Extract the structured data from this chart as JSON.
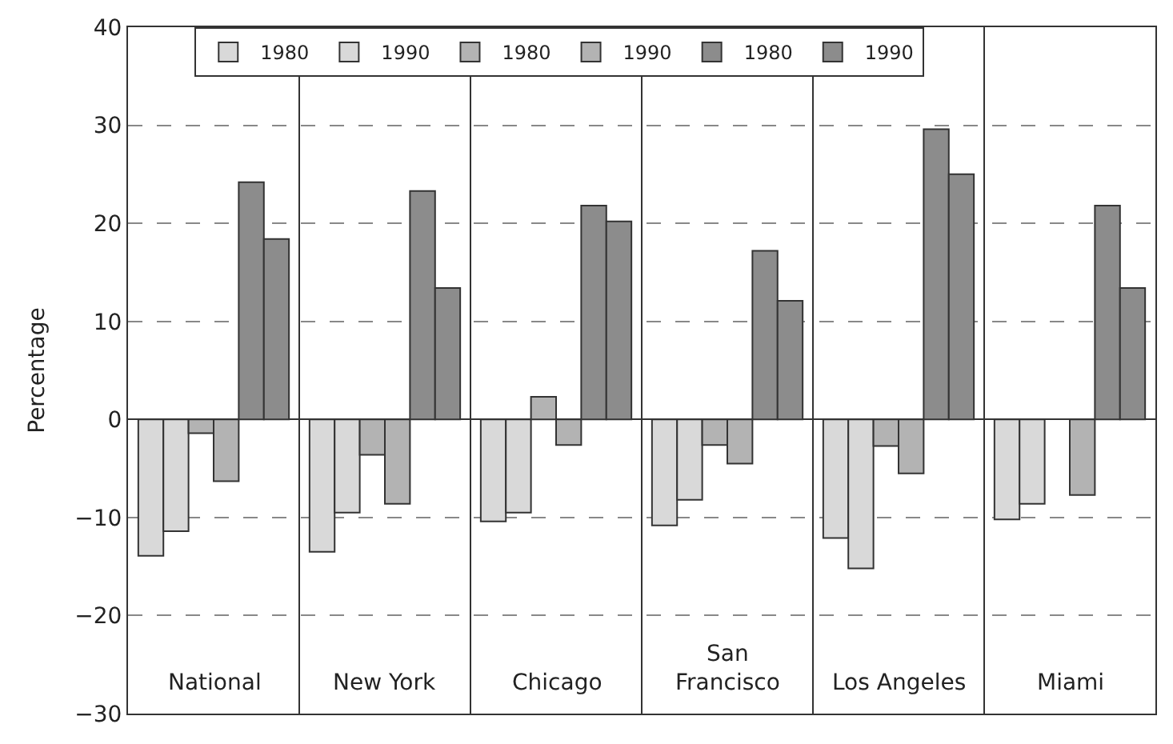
{
  "chart_data": {
    "type": "bar",
    "ylabel": "Percentage",
    "categories": [
      "National",
      "New York",
      "Chicago",
      "San Francisco",
      "Los Angeles",
      "Miami"
    ],
    "series": [
      {
        "name": "1980",
        "color": "#d9d9d9",
        "values": [
          -13.9,
          -13.5,
          -10.4,
          -10.8,
          -12.1,
          -10.2
        ]
      },
      {
        "name": "1990",
        "color": "#d9d9d9",
        "values": [
          -11.4,
          -9.5,
          -9.5,
          -8.2,
          -15.2,
          -8.6
        ]
      },
      {
        "name": "1980",
        "color": "#b3b3b3",
        "values": [
          -1.4,
          -3.6,
          2.3,
          -2.6,
          -2.7,
          null
        ]
      },
      {
        "name": "1990",
        "color": "#b3b3b3",
        "values": [
          -6.3,
          -8.6,
          -2.6,
          -4.5,
          -5.5,
          -7.7
        ]
      },
      {
        "name": "1980",
        "color": "#8c8c8c",
        "values": [
          24.2,
          23.3,
          21.8,
          17.2,
          29.6,
          21.8
        ]
      },
      {
        "name": "1990",
        "color": "#8c8c8c",
        "values": [
          18.4,
          13.4,
          20.2,
          12.1,
          25.0,
          13.4
        ]
      }
    ],
    "ylim": [
      -30,
      40
    ],
    "yticks": [
      {
        "value": -30,
        "label": "−30"
      },
      {
        "value": -20,
        "label": "−20"
      },
      {
        "value": -10,
        "label": "−10"
      },
      0,
      10,
      20,
      30,
      40
    ],
    "grid": true,
    "legend": "top"
  }
}
